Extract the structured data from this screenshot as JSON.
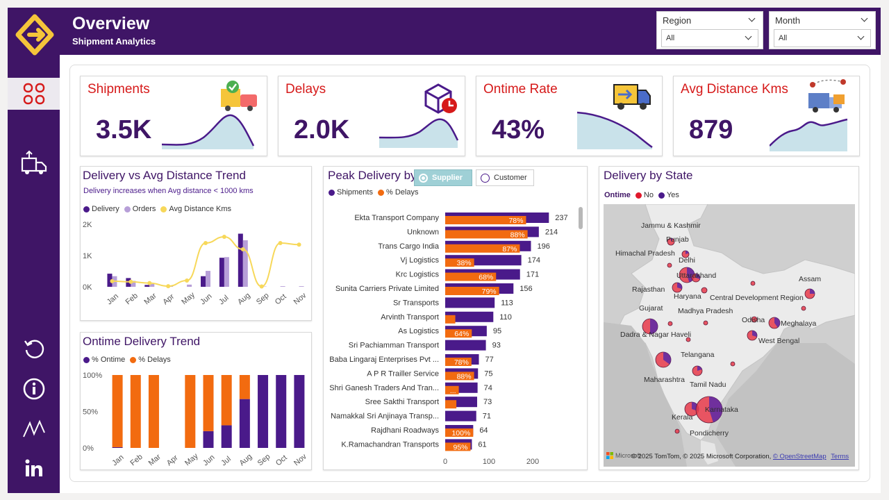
{
  "header": {
    "title": "Overview",
    "subtitle": "Shipment Analytics"
  },
  "filters": [
    {
      "label": "Region",
      "value": "All"
    },
    {
      "label": "Month",
      "value": "All"
    }
  ],
  "kpis": [
    {
      "title": "Shipments",
      "value": "3.5K"
    },
    {
      "title": "Delays",
      "value": "2.0K"
    },
    {
      "title": "Ontime Rate",
      "value": "43%"
    },
    {
      "title": "Avg Distance Kms",
      "value": "879"
    }
  ],
  "trend": {
    "title": "Delivery vs Avg Distance Trend",
    "subtitle": "Delivery increases when Avg distance < 1000 kms",
    "legend": [
      "Delivery",
      "Orders",
      "Avg Distance Kms"
    ]
  },
  "ontime": {
    "title": "Ontime Delivery Trend",
    "legend": [
      "% Ontime",
      "% Delays"
    ]
  },
  "peak": {
    "title": "Peak Delivery by",
    "options": [
      "Supplier",
      "Customer"
    ],
    "legend": [
      "Shipments",
      "% Delays"
    ]
  },
  "state": {
    "title": "Delivery by State",
    "legend_title": "Ontime",
    "legend": [
      "No",
      "Yes"
    ],
    "labels": [
      "Jammu & Kashmir",
      "Punjab",
      "Himachal Pradesh",
      "Delhi",
      "Uttarakhand",
      "Assam",
      "Rajasthan",
      "Haryana",
      "Central Development Region",
      "Gujarat",
      "Madhya Pradesh",
      "Odisha",
      "Meghalaya",
      "Dadra & Nagar Haveli",
      "West Bengal",
      "Telangana",
      "Maharashtra",
      "Tamil Nadu",
      "Karnataka",
      "Kerala",
      "Pondicherry"
    ],
    "attribution": "© 2025 TomTom, © 2025 Microsoft Corporation,",
    "osm": "© OpenStreetMap",
    "terms": "Terms",
    "brand": "Microsoft"
  },
  "colors": {
    "purple": "#4a1a8a",
    "orange": "#f26b10",
    "lavender": "#b79fd8",
    "yellow": "#f7d85a",
    "brand": "#3f1566",
    "red": "#d61a1a"
  },
  "chart_data": [
    {
      "type": "bar",
      "title": "Delivery vs Avg Distance Trend",
      "categories": [
        "Jan",
        "Feb",
        "Mar",
        "Apr",
        "May",
        "Jun",
        "Jul",
        "Aug",
        "Sep",
        "Oct",
        "Nov"
      ],
      "series": [
        {
          "name": "Delivery",
          "values": [
            420,
            280,
            60,
            0,
            0,
            340,
            930,
            1700,
            0,
            0,
            0
          ]
        },
        {
          "name": "Orders",
          "values": [
            340,
            190,
            90,
            30,
            70,
            510,
            950,
            1490,
            10,
            20,
            20
          ]
        },
        {
          "name": "Avg Distance Kms",
          "type": "line",
          "values": [
            180,
            160,
            120,
            20,
            200,
            1400,
            1600,
            1200,
            10,
            1400,
            1350
          ]
        }
      ],
      "yticks": [
        "0K",
        "1K",
        "2K"
      ],
      "ylim": [
        0,
        2000
      ]
    },
    {
      "type": "bar",
      "title": "Ontime Delivery Trend",
      "stacked": true,
      "categories": [
        "Jan",
        "Feb",
        "Mar",
        "Apr",
        "May",
        "Jun",
        "Jul",
        "Aug",
        "Sep",
        "Oct",
        "Nov"
      ],
      "series": [
        {
          "name": "% Ontime",
          "values": [
            1,
            0,
            0,
            null,
            0,
            23,
            31,
            67,
            100,
            100,
            100
          ]
        },
        {
          "name": "% Delays",
          "values": [
            99,
            100,
            100,
            null,
            100,
            77,
            69,
            33,
            0,
            0,
            0
          ]
        }
      ],
      "yticks": [
        "0%",
        "50%",
        "100%"
      ],
      "ylim": [
        0,
        100
      ]
    },
    {
      "type": "bar",
      "orientation": "horizontal",
      "title": "Peak Delivery by Supplier",
      "categories": [
        "Ekta Transport Company",
        "Unknown",
        "Trans Cargo India",
        "Vj Logistics",
        "Krc Logistics",
        "Sunita Carriers Private Limited",
        "Sr Transports",
        "Arvinth Transport",
        "As Logistics",
        "Sri Pachiamman Transport",
        "Baba Lingaraj Enterprises Pvt ...",
        "A P R Trailler Service",
        "Shri Ganesh Traders And Tran...",
        "Sree Sakthi Transport",
        "Namakkal Sri Anjinaya Transp...",
        "Rajdhani Roadways",
        "K.Ramachandran Transports"
      ],
      "series": [
        {
          "name": "Shipments",
          "values": [
            237,
            214,
            196,
            174,
            171,
            156,
            113,
            110,
            95,
            93,
            77,
            75,
            74,
            73,
            71,
            64,
            61
          ]
        },
        {
          "name": "% Delays",
          "values": [
            78,
            88,
            87,
            38,
            68,
            79,
            null,
            21,
            64,
            null,
            78,
            88,
            42,
            35,
            null,
            100,
            95
          ]
        }
      ],
      "delay_labels": [
        "78%",
        "88%",
        "87%",
        "38%",
        "68%",
        "79%",
        "",
        "",
        "64%",
        "",
        "78%",
        "88%",
        "...",
        "",
        "",
        "100%",
        "95%"
      ],
      "xticks": [
        "0",
        "100",
        "200"
      ],
      "xlim": [
        0,
        250
      ]
    }
  ]
}
